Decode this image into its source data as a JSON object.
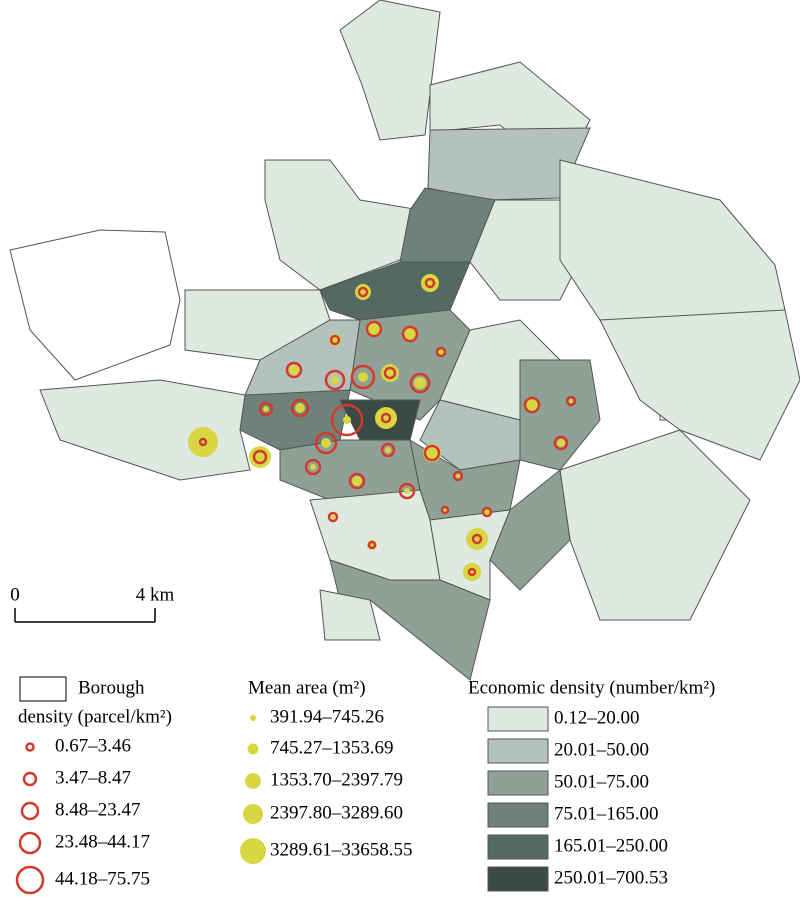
{
  "scale_bar": {
    "start": "0",
    "end": "4 km"
  },
  "legend": {
    "borough": "Borough",
    "parcel_density": {
      "title": "density (parcel/km²)",
      "classes": [
        "0.67–3.46",
        "3.47–8.47",
        "8.48–23.47",
        "23.48–44.17",
        "44.18–75.75"
      ]
    },
    "mean_area": {
      "title": "Mean area (m²)",
      "classes": [
        "391.94–745.26",
        "745.27–1353.69",
        "1353.70–2397.79",
        "2397.80–3289.60",
        "3289.61–33658.55"
      ]
    },
    "economic_density": {
      "title": "Economic density (number/km²)",
      "classes": [
        "0.12–20.00",
        "20.01–50.00",
        "50.01–75.00",
        "75.01–165.00",
        "165.01–250.00",
        "250.01–700.53"
      ]
    }
  }
}
